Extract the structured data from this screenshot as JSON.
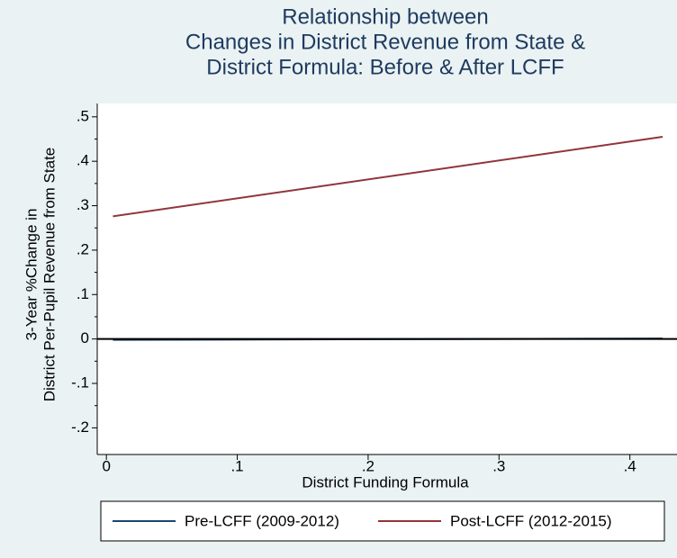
{
  "chart_data": {
    "type": "line",
    "title": [
      "Relationship between",
      "Changes in District Revenue from State &",
      "District Formula: Before & After LCFF"
    ],
    "x_label": "District Funding Formula",
    "y_label": [
      "3-Year %Change in",
      "District Per-Pupil Revenue from State"
    ],
    "x": [
      0.005,
      0.425
    ],
    "series": [
      {
        "name": "Pre-LCFF (2009-2012)",
        "color": "#1a476f",
        "values": [
          -0.002,
          0.001
        ]
      },
      {
        "name": "Post-LCFF (2012-2015)",
        "color": "#90353b",
        "values": [
          0.276,
          0.455
        ]
      }
    ],
    "xlim": [
      -0.007,
      0.436
    ],
    "ylim": [
      -0.26,
      0.53
    ],
    "xticks": [
      0,
      {
        "value": 0.1,
        "label": ".1"
      },
      {
        "value": 0.2,
        "label": ".2"
      },
      {
        "value": 0.3,
        "label": ".3"
      },
      {
        "value": 0.4,
        "label": ".4"
      }
    ],
    "yticks": [
      {
        "value": -0.2,
        "label": "-.2"
      },
      {
        "value": -0.1,
        "label": "-.1"
      },
      0,
      {
        "value": 0.1,
        "label": ".1"
      },
      {
        "value": 0.2,
        "label": ".2"
      },
      {
        "value": 0.3,
        "label": ".3"
      },
      {
        "value": 0.4,
        "label": ".4"
      },
      {
        "value": 0.5,
        "label": ".5"
      }
    ],
    "yminorticks": [
      -0.15,
      -0.05,
      0.05,
      0.15,
      0.25,
      0.35,
      0.45
    ],
    "yline": 0,
    "legend": "bottom"
  }
}
